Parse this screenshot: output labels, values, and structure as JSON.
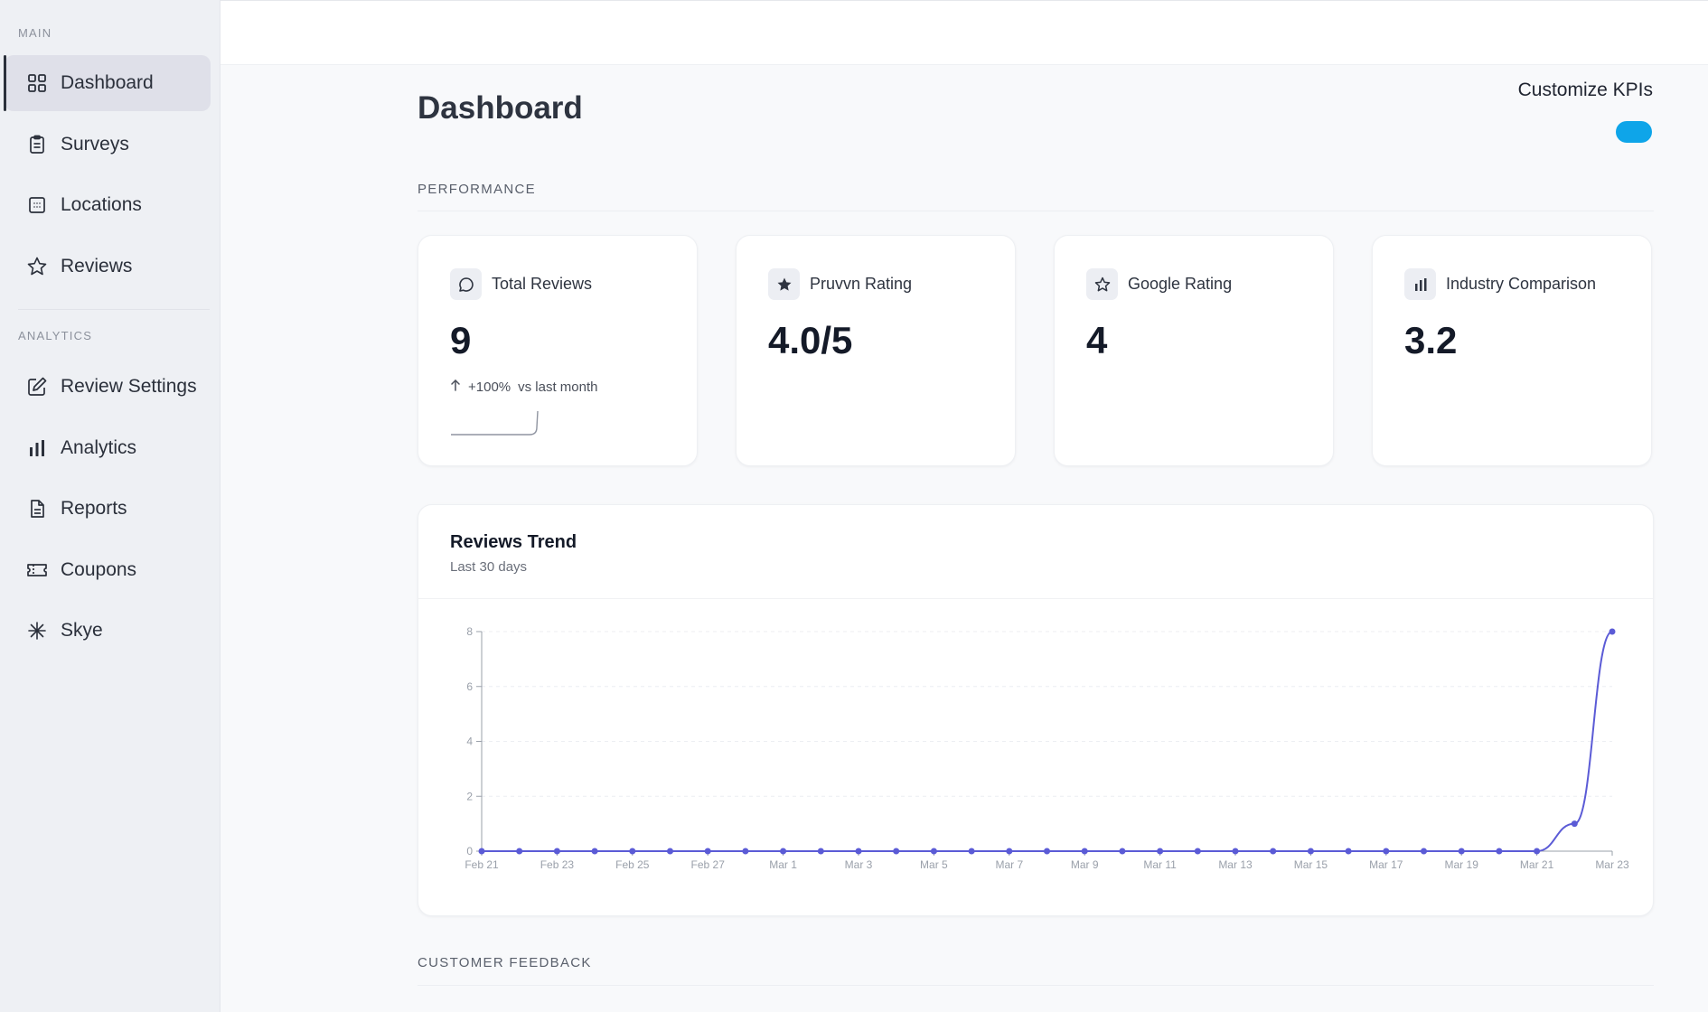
{
  "sidebar": {
    "main_label": "MAIN",
    "analytics_label": "ANALYTICS",
    "main_items": [
      {
        "label": "Dashboard",
        "icon": "grid-icon"
      },
      {
        "label": "Surveys",
        "icon": "clipboard-icon"
      },
      {
        "label": "Locations",
        "icon": "building-icon"
      },
      {
        "label": "Reviews",
        "icon": "star-icon"
      }
    ],
    "analytics_items": [
      {
        "label": "Review Settings",
        "icon": "edit-icon"
      },
      {
        "label": "Analytics",
        "icon": "bar-chart-icon"
      },
      {
        "label": "Reports",
        "icon": "document-icon"
      },
      {
        "label": "Coupons",
        "icon": "ticket-icon"
      },
      {
        "label": "Skye",
        "icon": "sparkle-icon"
      }
    ]
  },
  "header": {
    "title": "Dashboard",
    "customize_label": "Customize KPIs",
    "toggle_on": true,
    "toggle_color": "#0ea5e9"
  },
  "performance": {
    "label": "PERFORMANCE",
    "cards": [
      {
        "title": "Total Reviews",
        "value": "9",
        "delta": "+100%",
        "delta_text": "vs last month",
        "icon": "message-icon"
      },
      {
        "title": "Pruvvn Rating",
        "value": "4.0/5",
        "icon": "star-filled-icon"
      },
      {
        "title": "Google Rating",
        "value": "4",
        "icon": "star-icon"
      },
      {
        "title": "Industry Comparison",
        "value": "3.2",
        "icon": "bar-chart-icon"
      }
    ]
  },
  "trend": {
    "title": "Reviews Trend",
    "subtitle": "Last 30 days"
  },
  "feedback": {
    "label": "CUSTOMER FEEDBACK"
  },
  "chart_data": {
    "type": "line",
    "x": [
      "Feb 21",
      "Feb 22",
      "Feb 23",
      "Feb 24",
      "Feb 25",
      "Feb 26",
      "Feb 27",
      "Feb 28",
      "Mar 1",
      "Mar 2",
      "Mar 3",
      "Mar 4",
      "Mar 5",
      "Mar 6",
      "Mar 7",
      "Mar 8",
      "Mar 9",
      "Mar 10",
      "Mar 11",
      "Mar 12",
      "Mar 13",
      "Mar 14",
      "Mar 15",
      "Mar 16",
      "Mar 17",
      "Mar 18",
      "Mar 19",
      "Mar 20",
      "Mar 21",
      "Mar 22",
      "Mar 23"
    ],
    "tick_labels": [
      "Feb 21",
      "Feb 23",
      "Feb 25",
      "Feb 27",
      "Mar 1",
      "Mar 3",
      "Mar 5",
      "Mar 7",
      "Mar 9",
      "Mar 11",
      "Mar 13",
      "Mar 15",
      "Mar 17",
      "Mar 19",
      "Mar 21",
      "Mar 23"
    ],
    "series": [
      {
        "values": [
          0,
          0,
          0,
          0,
          0,
          0,
          0,
          0,
          0,
          0,
          0,
          0,
          0,
          0,
          0,
          0,
          0,
          0,
          0,
          0,
          0,
          0,
          0,
          0,
          0,
          0,
          0,
          0,
          0,
          1,
          8
        ]
      }
    ],
    "ylim": [
      0,
      8
    ],
    "yticks": [
      0,
      2,
      4,
      6,
      8
    ],
    "grid": true,
    "color": "#5b5bd6",
    "title": "Reviews Trend",
    "xlabel": "",
    "ylabel": ""
  }
}
